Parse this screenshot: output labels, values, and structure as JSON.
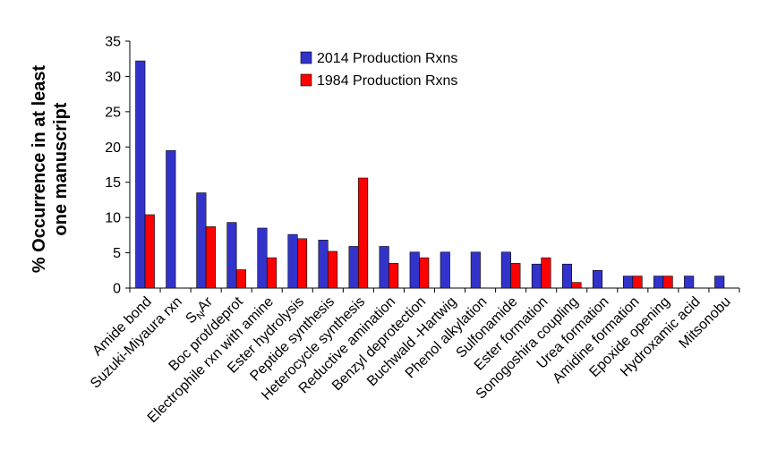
{
  "chart_data": {
    "type": "bar",
    "title": "",
    "xlabel": "",
    "ylabel_lines": [
      "% Occurrence in at least",
      "one manuscript"
    ],
    "ylim": [
      0,
      35
    ],
    "yticks": [
      0,
      5,
      10,
      15,
      20,
      25,
      30,
      35
    ],
    "grid": false,
    "legend_position": "top-center",
    "categories": [
      "Amide bond",
      "Suzuki-Miyaura rxn",
      "SNAr",
      "Boc prot/deprot",
      "Electrophile rxn with amine",
      "Ester hydrolysis",
      "Peptide synthesis",
      "Heterocycle synthesis",
      "Reductive amination",
      "Benzyl deprotection",
      "Buchwald -Hartwig",
      "Phenol alkylation",
      "Sulfonamide",
      "Ester formation",
      "Sonogoshira coupling",
      "Urea formation",
      "Amidine formation",
      "Epoxide opening",
      "Hydroxamic acid",
      "Mitsonobu"
    ],
    "series": [
      {
        "name": "2014 Production Rxns",
        "color": "#3333cc",
        "values": [
          32.2,
          19.5,
          13.5,
          9.3,
          8.5,
          7.6,
          6.8,
          5.9,
          5.9,
          5.1,
          5.1,
          5.1,
          5.1,
          3.4,
          3.4,
          2.5,
          1.7,
          1.7,
          1.7,
          1.7
        ]
      },
      {
        "name": "1984 Production Rxns",
        "color": "#ff0000",
        "values": [
          10.4,
          0,
          8.7,
          2.6,
          4.3,
          7.0,
          5.2,
          15.6,
          3.5,
          4.3,
          0,
          0,
          3.5,
          4.3,
          0.8,
          0,
          1.7,
          1.7,
          0,
          0
        ]
      }
    ]
  }
}
